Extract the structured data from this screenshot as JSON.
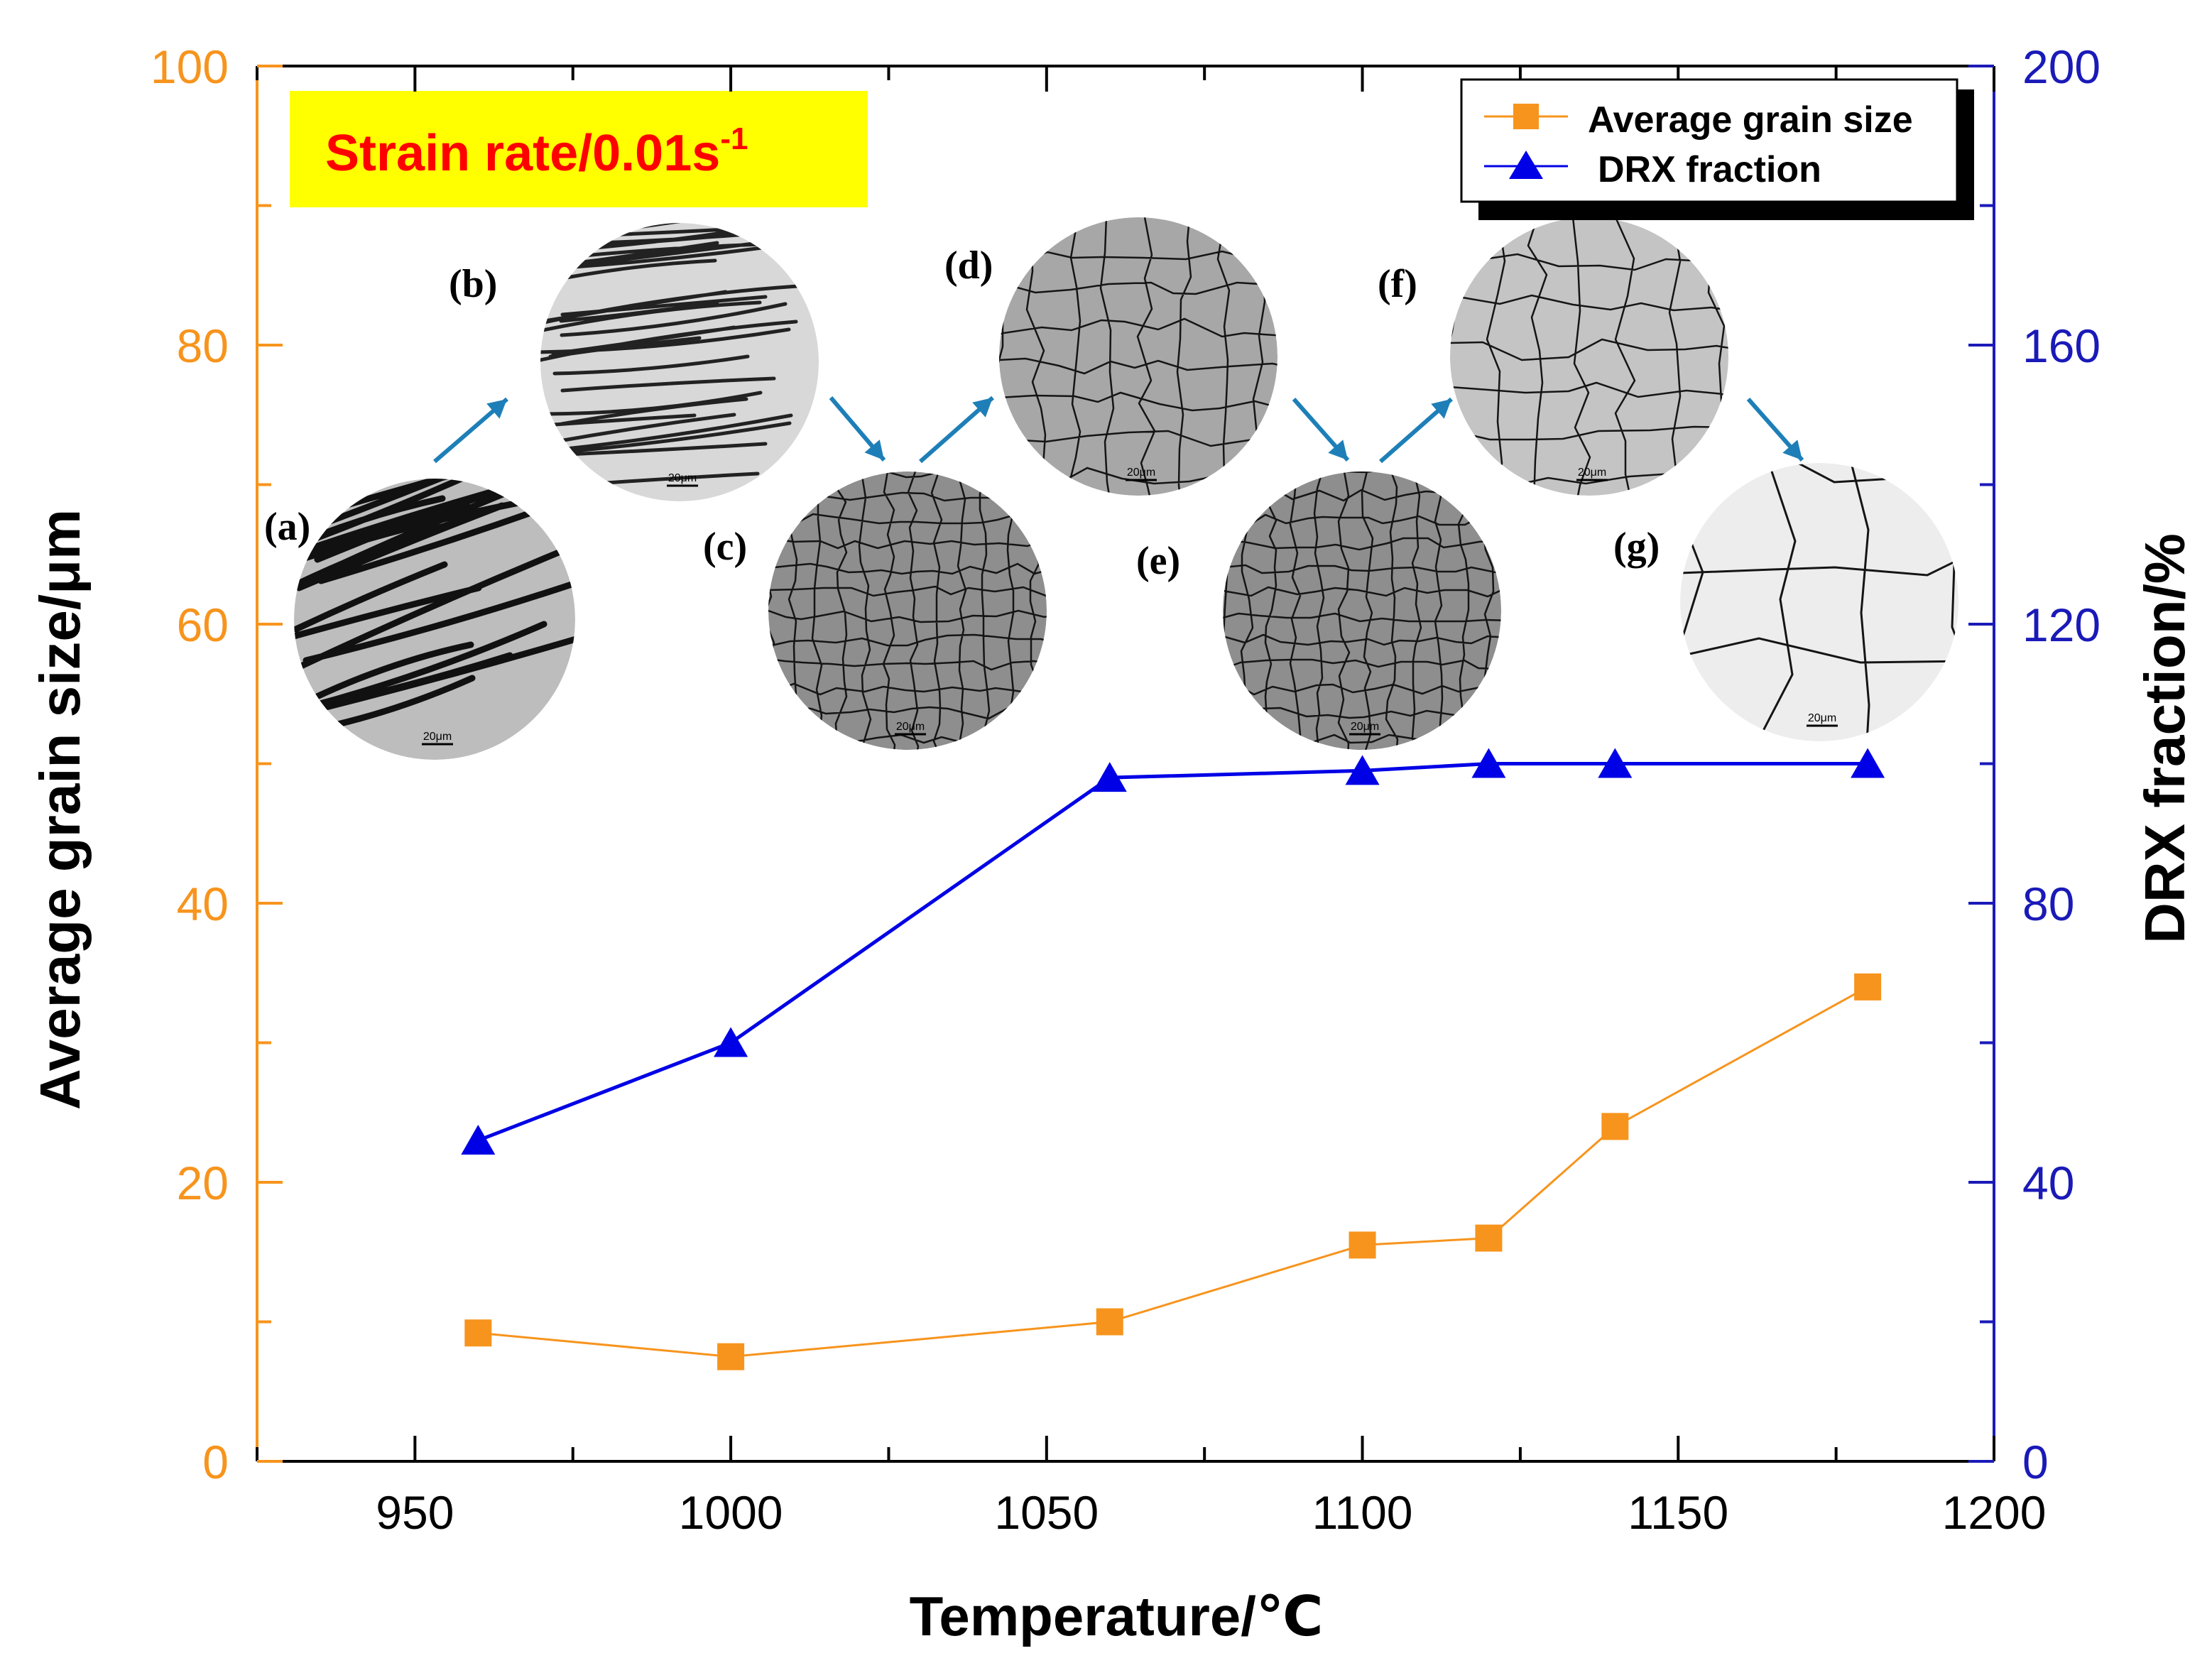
{
  "colors": {
    "left_axis": "#F7941D",
    "right_axis": "#1A1AB8",
    "grain_series": "#F7941D",
    "drx_series": "#0000E6",
    "arrow": "#1E7FB8",
    "annotation_bg": "#FFFF00",
    "annotation_text": "#FF0000"
  },
  "chart_data": {
    "type": "line",
    "xlabel": "Temperature/℃",
    "ylabel_left": "Average grain size/μm",
    "ylabel_right": "DRX fraction/%",
    "xlim": [
      925,
      1200
    ],
    "ylim_left": [
      0,
      100
    ],
    "ylim_right": [
      0,
      200
    ],
    "x_ticks": [
      950,
      1000,
      1050,
      1100,
      1150,
      1200
    ],
    "y_ticks_left": [
      0,
      20,
      40,
      60,
      80,
      100
    ],
    "y_ticks_right": [
      0,
      40,
      80,
      120,
      160,
      200
    ],
    "grid": false,
    "legend_position": "top-right",
    "annotation": {
      "text": "Strain rate/0.01s",
      "superscript": "-1"
    },
    "series": [
      {
        "name": "Average grain size",
        "axis": "left",
        "marker": "square",
        "x": [
          960,
          1000,
          1060,
          1100,
          1120,
          1140,
          1180
        ],
        "y": [
          9.2,
          7.5,
          10.0,
          15.5,
          16.0,
          24.0,
          34.0
        ]
      },
      {
        "name": "DRX fraction",
        "axis": "right",
        "marker": "triangle",
        "x": [
          960,
          1000,
          1060,
          1100,
          1120,
          1140,
          1180
        ],
        "y": [
          46,
          60,
          98,
          99,
          100,
          100,
          100
        ]
      }
    ],
    "micrographs": [
      {
        "label": "(a)",
        "scale": "20μm",
        "style": "deformed"
      },
      {
        "label": "(b)",
        "scale": "20μm",
        "style": "deformed-light"
      },
      {
        "label": "(c)",
        "scale": "20μm",
        "style": "fine"
      },
      {
        "label": "(d)",
        "scale": "20μm",
        "style": "medium"
      },
      {
        "label": "(e)",
        "scale": "20μm",
        "style": "fine"
      },
      {
        "label": "(f)",
        "scale": "20μm",
        "style": "medium-light"
      },
      {
        "label": "(g)",
        "scale": "20μm",
        "style": "coarse"
      }
    ]
  }
}
